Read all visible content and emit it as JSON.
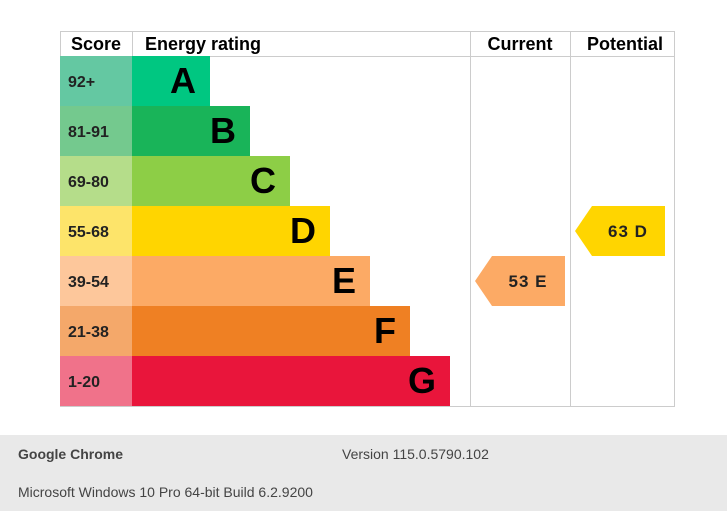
{
  "chart_data": {
    "type": "bar",
    "headers": {
      "score": "Score",
      "rating": "Energy rating",
      "current": "Current",
      "potential": "Potential"
    },
    "bands": [
      {
        "score": "92+",
        "letter": "A",
        "color": "#00c781",
        "score_bg": "#64c8a2"
      },
      {
        "score": "81-91",
        "letter": "B",
        "color": "#19b459",
        "score_bg": "#74c98e"
      },
      {
        "score": "69-80",
        "letter": "C",
        "color": "#8dce46",
        "score_bg": "#b5dd8a"
      },
      {
        "score": "55-68",
        "letter": "D",
        "color": "#ffd500",
        "score_bg": "#fde46a"
      },
      {
        "score": "39-54",
        "letter": "E",
        "color": "#fcaa65",
        "score_bg": "#fdc79b"
      },
      {
        "score": "21-38",
        "letter": "F",
        "color": "#ef8023",
        "score_bg": "#f4a86a"
      },
      {
        "score": "1-20",
        "letter": "G",
        "color": "#e9153b",
        "score_bg": "#f0728a"
      }
    ],
    "current": {
      "value": 53,
      "letter": "E",
      "label": "53 E",
      "color": "#fcaa65"
    },
    "potential": {
      "value": 63,
      "letter": "D",
      "label": "63 D",
      "color": "#ffd500"
    }
  },
  "footer": {
    "app_name": "Google Chrome",
    "version": "Version 115.0.5790.102",
    "os": "Microsoft Windows 10 Pro 64-bit Build 6.2.9200"
  }
}
